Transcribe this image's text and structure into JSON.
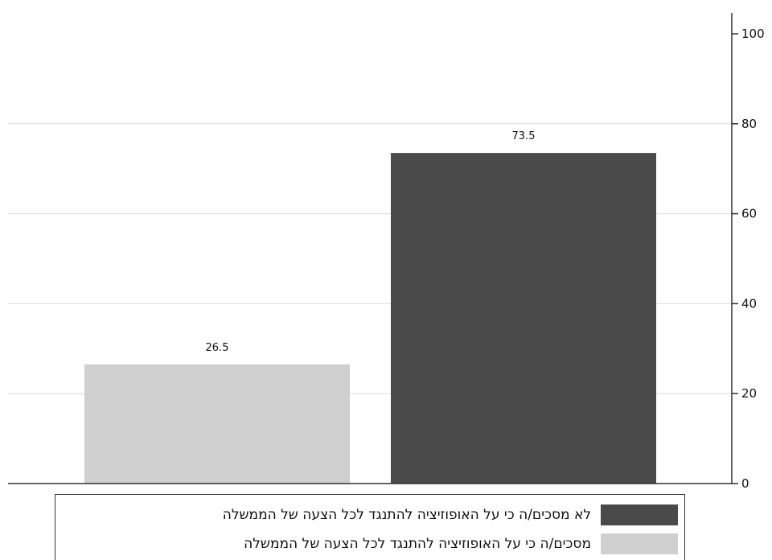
{
  "chart_data": {
    "type": "bar",
    "title": "",
    "xlabel": "",
    "ylabel": "",
    "ylim": [
      0,
      100
    ],
    "yticks": [
      0,
      20,
      40,
      60,
      80,
      100
    ],
    "y_axis_side": "right",
    "grid": true,
    "legend_position": "bottom",
    "series": [
      {
        "name": "מסכים/ה כי על האופוזיציה להתנגד לכל הצעה של הממשלה",
        "value": 26.5,
        "value_label": "26.5",
        "color": "#cfcfcf"
      },
      {
        "name": "לא מסכים/ה כי על האופוזיציה להתנגד לכל הצעה של הממשלה",
        "value": 73.5,
        "value_label": "73.5",
        "color": "#4a4a4a"
      }
    ]
  }
}
